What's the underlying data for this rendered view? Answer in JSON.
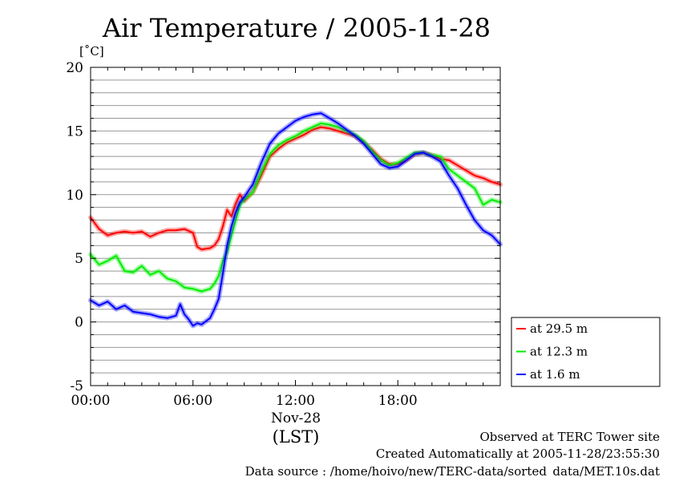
{
  "chart_data": {
    "type": "line",
    "title": "Air Temperature / 2005-11-28",
    "ylabel": "[˚C]",
    "xlabel": "(LST)",
    "date_label": "Nov-28",
    "x_unit": "hours (LST)",
    "xlim": [
      0,
      24
    ],
    "ylim": [
      -5,
      20
    ],
    "y_ticks": [
      -5,
      0,
      5,
      10,
      15,
      20
    ],
    "x_ticks": [
      {
        "x": 0,
        "label": "00:00"
      },
      {
        "x": 6,
        "label": "06:00"
      },
      {
        "x": 12,
        "label": "12:00"
      },
      {
        "x": 18,
        "label": "18:00"
      }
    ],
    "grid": "horizontal",
    "legend_position": "right",
    "series": [
      {
        "name": "at 29.5 m",
        "color": "#ff0000",
        "x": [
          0,
          0.5,
          1,
          1.5,
          2,
          2.5,
          3,
          3.5,
          4,
          4.5,
          5,
          5.5,
          6,
          6.25,
          6.5,
          7,
          7.25,
          7.5,
          7.75,
          8,
          8.25,
          8.5,
          8.75,
          9,
          9.5,
          10,
          10.5,
          11,
          11.5,
          12,
          12.5,
          13,
          13.5,
          14,
          14.5,
          15,
          15.5,
          16,
          16.5,
          17,
          17.5,
          18,
          18.5,
          19,
          19.5,
          20,
          20.5,
          21,
          21.5,
          22,
          22.5,
          23,
          23.5,
          24
        ],
        "values": [
          8.2,
          7.3,
          6.8,
          7.0,
          7.1,
          7.0,
          7.1,
          6.7,
          7.0,
          7.2,
          7.2,
          7.3,
          7.0,
          5.9,
          5.7,
          5.8,
          6.0,
          6.5,
          7.5,
          8.8,
          8.3,
          9.3,
          10.0,
          9.5,
          10.2,
          11.5,
          13.0,
          13.6,
          14.1,
          14.4,
          14.7,
          15.1,
          15.3,
          15.2,
          15.0,
          14.8,
          14.6,
          14.1,
          13.5,
          12.8,
          12.4,
          12.4,
          12.7,
          13.2,
          13.3,
          13.1,
          12.8,
          12.7,
          12.3,
          11.9,
          11.5,
          11.3,
          11.0,
          10.8
        ]
      },
      {
        "name": "at 12.3 m",
        "color": "#00ee00",
        "x": [
          0,
          0.5,
          1,
          1.5,
          2,
          2.5,
          3,
          3.5,
          4,
          4.5,
          5,
          5.5,
          6,
          6.5,
          7,
          7.25,
          7.5,
          7.75,
          8,
          8.25,
          8.5,
          8.75,
          9,
          9.5,
          10,
          10.5,
          11,
          11.5,
          12,
          12.5,
          13,
          13.5,
          14,
          14.5,
          15,
          15.5,
          16,
          16.5,
          17,
          17.5,
          18,
          18.5,
          19,
          19.5,
          20,
          20.5,
          21,
          21.5,
          22,
          22.5,
          23,
          23.5,
          24
        ],
        "values": [
          5.3,
          4.5,
          4.8,
          5.2,
          4.0,
          3.9,
          4.4,
          3.7,
          4.0,
          3.4,
          3.2,
          2.7,
          2.6,
          2.4,
          2.6,
          3.0,
          3.6,
          4.8,
          5.5,
          6.8,
          8.0,
          9.2,
          9.6,
          10.2,
          11.8,
          13.2,
          13.9,
          14.3,
          14.6,
          15.0,
          15.3,
          15.6,
          15.5,
          15.3,
          15.0,
          14.7,
          14.2,
          13.4,
          12.7,
          12.3,
          12.5,
          12.9,
          13.3,
          13.3,
          13.1,
          13.0,
          12.0,
          11.5,
          11.0,
          10.5,
          9.2,
          9.6,
          9.4
        ]
      },
      {
        "name": "at 1.6 m",
        "color": "#0000ff",
        "x": [
          0,
          0.5,
          1,
          1.5,
          2,
          2.5,
          3,
          3.5,
          4,
          4.5,
          5,
          5.25,
          5.5,
          5.75,
          6,
          6.25,
          6.5,
          7,
          7.25,
          7.5,
          7.75,
          8,
          8.25,
          8.5,
          8.75,
          9,
          9.5,
          10,
          10.5,
          11,
          11.5,
          12,
          12.5,
          13,
          13.5,
          14,
          14.5,
          15,
          15.5,
          16,
          16.5,
          17,
          17.5,
          18,
          18.5,
          19,
          19.5,
          20,
          20.5,
          21,
          21.5,
          22,
          22.5,
          23,
          23.5,
          24
        ],
        "values": [
          1.7,
          1.3,
          1.6,
          1.0,
          1.3,
          0.8,
          0.7,
          0.6,
          0.4,
          0.3,
          0.5,
          1.4,
          0.6,
          0.2,
          -0.3,
          -0.1,
          -0.2,
          0.3,
          1.0,
          1.8,
          3.8,
          6.0,
          7.5,
          8.6,
          9.4,
          9.8,
          10.8,
          12.5,
          14.0,
          14.8,
          15.3,
          15.8,
          16.1,
          16.3,
          16.4,
          16.0,
          15.6,
          15.1,
          14.6,
          14.0,
          13.2,
          12.4,
          12.1,
          12.2,
          12.7,
          13.2,
          13.3,
          13.0,
          12.6,
          11.5,
          10.5,
          9.2,
          8.0,
          7.2,
          6.8,
          6.1
        ]
      }
    ]
  },
  "footer": {
    "site": "Observed at TERC Tower site",
    "created": "Created Automatically at 2005-11-28/23:55:30",
    "source": "Data source : /home/hoivo/new/TERC-data/sorted_data/MET.10s.dat"
  }
}
